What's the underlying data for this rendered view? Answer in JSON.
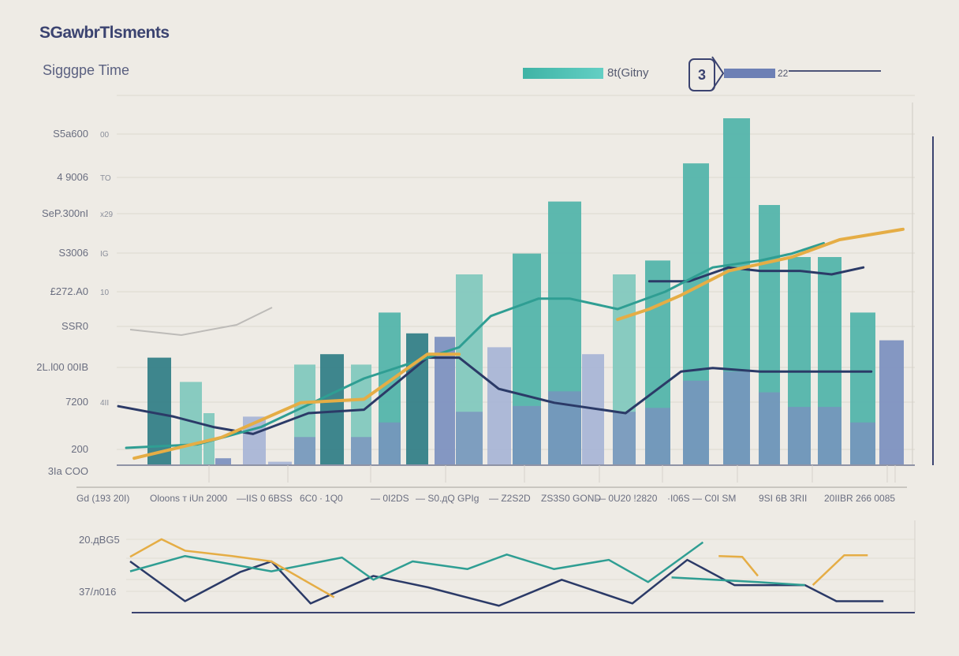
{
  "header": {
    "title": "SGawbrTlsments",
    "subtitle": "Sigggpe Time"
  },
  "legend": {
    "series_a_label": "8t(Gitny",
    "badge": "3",
    "series_b_label": "22"
  },
  "colors": {
    "background": "#eeebe5",
    "teal": "#4fb3a9",
    "dark_teal": "#2f7d86",
    "light_teal": "#7fc8bd",
    "slate": "#7b8fbf",
    "light_slate": "#a7b4d6",
    "navy_line": "#2b3a67",
    "teal_line": "#2f9e93",
    "gold_line": "#e5ad45"
  },
  "chart_data": [
    {
      "type": "bar",
      "title": "",
      "grid": true,
      "ylim": [
        0,
        100
      ],
      "xlim": [
        0,
        100
      ],
      "y_tick_labels": [
        {
          "main": "S5a600",
          "small": "00"
        },
        {
          "main": "4 9006",
          "small": "TO"
        },
        {
          "main": "SeP.300nI",
          "small": "x29"
        },
        {
          "main": "S3006",
          "small": "IG"
        },
        {
          "main": "£272.A0",
          "small": "10"
        },
        {
          "main": "SSR0",
          "small": ""
        },
        {
          "main": "2L.l00 00IB",
          "small": ""
        },
        {
          "main": "7200",
          "small": "4II"
        },
        {
          "main": "200",
          "small": ""
        },
        {
          "main": "3Ia COO",
          "small": ""
        }
      ],
      "x_tick_labels": [
        "Gd (193 20I)",
        "Oloons т iUn 2000",
        "—IIS 0 6BSS",
        "6C0 ∙ 1Q0",
        "— 0I2DS",
        "— S0.дQ GPIg",
        "— Z2S2D",
        "ZS3S0 GOND",
        "— 0U20 !2820",
        "·I06S — C0I SM",
        "9SI 6B 3RII",
        "20IIBR 266 0085"
      ],
      "bars": [
        {
          "value": 31,
          "color": "dark_teal"
        },
        {
          "value": 24,
          "color": "light_teal"
        },
        {
          "value": 15,
          "color": "light_teal"
        },
        {
          "value": 2,
          "color": "slate"
        },
        {
          "value": 14,
          "color": "light_slate"
        },
        {
          "value": 1,
          "color": "light_slate"
        },
        {
          "value": 29,
          "color": "light_teal"
        },
        {
          "value": 32,
          "color": "dark_teal"
        },
        {
          "value": 29,
          "color": "light_teal"
        },
        {
          "value": 44,
          "color": "teal"
        },
        {
          "value": 38,
          "color": "dark_teal"
        },
        {
          "value": 37,
          "color": "slate"
        },
        {
          "value": 55,
          "color": "light_teal"
        },
        {
          "value": 34,
          "color": "light_slate"
        },
        {
          "value": 61,
          "color": "teal"
        },
        {
          "value": 76,
          "color": "teal"
        },
        {
          "value": 32,
          "color": "light_slate"
        },
        {
          "value": 55,
          "color": "light_teal"
        },
        {
          "value": 59,
          "color": "teal"
        },
        {
          "value": 87,
          "color": "teal"
        },
        {
          "value": 100,
          "color": "teal"
        },
        {
          "value": 75,
          "color": "teal"
        },
        {
          "value": 60,
          "color": "teal"
        },
        {
          "value": 60,
          "color": "teal"
        },
        {
          "value": 44,
          "color": "teal"
        },
        {
          "value": 36,
          "color": "slate"
        }
      ],
      "lines": [
        {
          "color": "navy_line",
          "points": [
            [
              0,
              17
            ],
            [
              7,
              14
            ],
            [
              12,
              11
            ],
            [
              17,
              9
            ],
            [
              24,
              15
            ],
            [
              31,
              16
            ],
            [
              39,
              31
            ],
            [
              43,
              31
            ],
            [
              48,
              22
            ],
            [
              55,
              18
            ],
            [
              64,
              15
            ],
            [
              71,
              27
            ],
            [
              75,
              28
            ],
            [
              81,
              27
            ],
            [
              95,
              27
            ]
          ]
        },
        {
          "color": "navy_line",
          "points": [
            [
              67,
              53
            ],
            [
              72,
              53
            ],
            [
              77,
              57
            ],
            [
              81,
              56
            ],
            [
              86,
              56
            ],
            [
              90,
              55
            ],
            [
              94,
              57
            ]
          ]
        },
        {
          "color": "teal_line",
          "points": [
            [
              1,
              5
            ],
            [
              10,
              6
            ],
            [
              18,
              11
            ],
            [
              31,
              25
            ],
            [
              43,
              34
            ],
            [
              47,
              43
            ],
            [
              53,
              48
            ],
            [
              57,
              48
            ],
            [
              63,
              45
            ],
            [
              69,
              50
            ],
            [
              75,
              57
            ],
            [
              81,
              59
            ],
            [
              85,
              61
            ],
            [
              89,
              64
            ]
          ]
        },
        {
          "color": "gold_line",
          "points": [
            [
              2,
              2
            ],
            [
              13,
              8
            ],
            [
              23,
              18
            ],
            [
              31,
              19
            ],
            [
              39,
              32
            ],
            [
              43,
              32
            ]
          ]
        },
        {
          "color": "gold_line",
          "points": [
            [
              63,
              42
            ],
            [
              67,
              45
            ],
            [
              71,
              49
            ],
            [
              77,
              56
            ],
            [
              85,
              60
            ],
            [
              91,
              65
            ],
            [
              99,
              68
            ]
          ]
        }
      ]
    },
    {
      "type": "line",
      "title": "",
      "ylim": [
        0,
        100
      ],
      "xlim": [
        0,
        100
      ],
      "y_tick_labels": [
        "20.дBG5",
        "37/л016"
      ],
      "lines": [
        {
          "color": "navy_line",
          "points": [
            [
              0,
              67
            ],
            [
              7,
              15
            ],
            [
              14,
              53
            ],
            [
              18,
              67
            ],
            [
              23,
              12
            ],
            [
              31,
              48
            ],
            [
              38,
              33
            ],
            [
              47,
              9
            ],
            [
              55,
              43
            ],
            [
              64,
              12
            ],
            [
              71,
              69
            ],
            [
              77,
              36
            ],
            [
              86,
              36
            ],
            [
              90,
              15
            ],
            [
              96,
              15
            ]
          ]
        },
        {
          "color": "teal_line",
          "points": [
            [
              0,
              54
            ],
            [
              7,
              74
            ],
            [
              18,
              54
            ],
            [
              27,
              72
            ],
            [
              31,
              43
            ],
            [
              36,
              67
            ],
            [
              43,
              57
            ],
            [
              48,
              76
            ],
            [
              54,
              57
            ],
            [
              61,
              69
            ],
            [
              66,
              40
            ],
            [
              73,
              92
            ]
          ]
        },
        {
          "color": "teal_line",
          "points": [
            [
              69,
              46
            ],
            [
              80,
              40
            ],
            [
              86,
              36
            ]
          ]
        },
        {
          "color": "gold_line",
          "points": [
            [
              0,
              73
            ],
            [
              4,
              96
            ],
            [
              7,
              81
            ],
            [
              13,
              74
            ],
            [
              18,
              67
            ],
            [
              26,
              20
            ]
          ]
        },
        {
          "color": "gold_line",
          "points": [
            [
              75,
              74
            ],
            [
              78,
              73
            ],
            [
              80,
              48
            ]
          ]
        },
        {
          "color": "gold_line",
          "points": [
            [
              87,
              36
            ],
            [
              91,
              75
            ],
            [
              94,
              75
            ]
          ]
        }
      ]
    }
  ]
}
